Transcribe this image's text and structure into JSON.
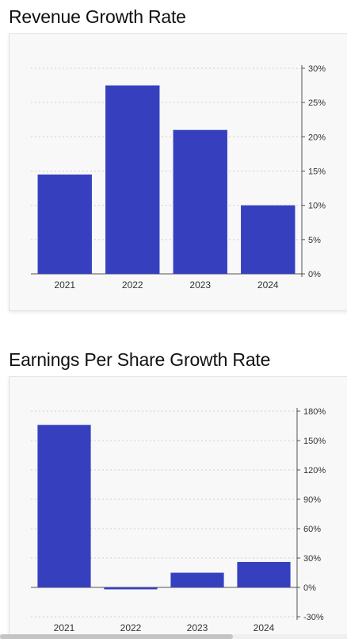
{
  "colors": {
    "bar": "#3640bf",
    "grid": "#d0d0d0",
    "axis": "#555555"
  },
  "chart_data": [
    {
      "type": "bar",
      "title": "Revenue Growth Rate",
      "categories": [
        "2021",
        "2022",
        "2023",
        "2024"
      ],
      "values": [
        14.5,
        27.5,
        21,
        10
      ],
      "ylim": [
        0,
        30
      ],
      "yticks": [
        0,
        5,
        10,
        15,
        20,
        25,
        30
      ],
      "ytick_labels": [
        "0%",
        "5%",
        "10%",
        "15%",
        "20%",
        "25%",
        "30%"
      ],
      "yaxis_position": "right",
      "grid": true,
      "xlabel": "",
      "ylabel": ""
    },
    {
      "type": "bar",
      "title": "Earnings Per Share Growth Rate",
      "categories": [
        "2021",
        "2022",
        "2023",
        "2024"
      ],
      "values": [
        166,
        -2,
        15,
        26
      ],
      "ylim": [
        -30,
        180
      ],
      "yticks": [
        -30,
        0,
        30,
        60,
        90,
        120,
        150,
        180
      ],
      "ytick_labels": [
        "-30%",
        "0%",
        "30%",
        "60%",
        "90%",
        "120%",
        "150%",
        "180%"
      ],
      "yaxis_position": "right",
      "grid": true,
      "xlabel": "",
      "ylabel": ""
    }
  ]
}
